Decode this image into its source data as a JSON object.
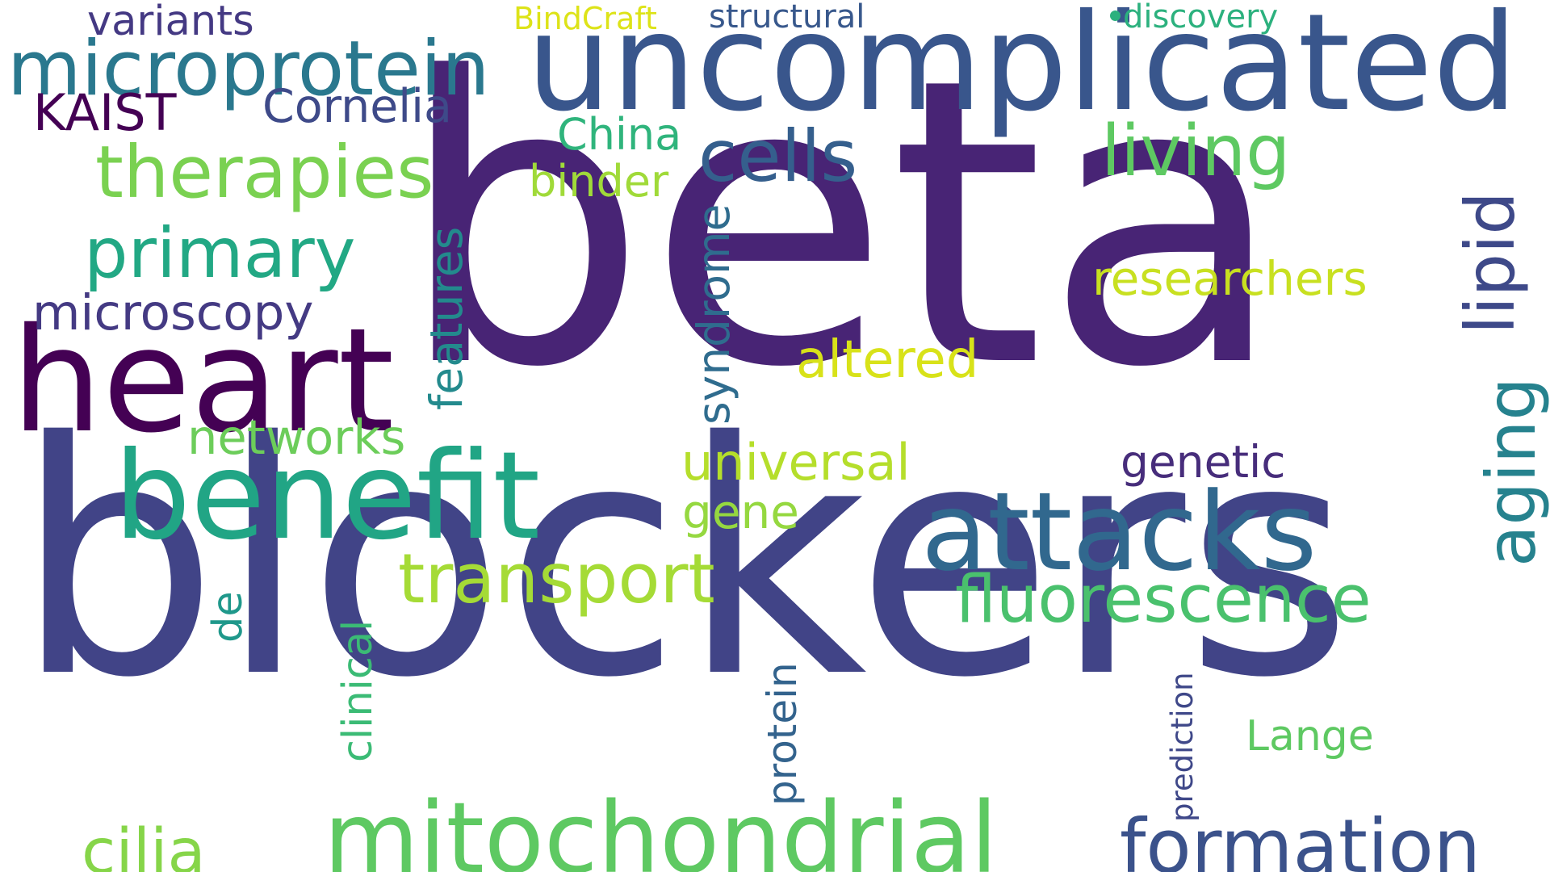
{
  "word_cloud": {
    "background": "#ffffff",
    "words": [
      {
        "text": "beta",
        "color": "#482475"
      },
      {
        "text": "blockers",
        "color": "#414487"
      },
      {
        "text": "uncomplicated",
        "color": "#39568c"
      },
      {
        "text": "heart",
        "color": "#440154"
      },
      {
        "text": "benefit",
        "color": "#21a585"
      },
      {
        "text": "attacks",
        "color": "#31688e"
      },
      {
        "text": "mitochondrial",
        "color": "#5ec962"
      },
      {
        "text": "formation",
        "color": "#3b528b"
      },
      {
        "text": "microprotein",
        "color": "#2a788e"
      },
      {
        "text": "therapies",
        "color": "#7ad151"
      },
      {
        "text": "transport",
        "color": "#a5db36"
      },
      {
        "text": "fluorescence",
        "color": "#4ac16d"
      },
      {
        "text": "primary",
        "color": "#22a884"
      },
      {
        "text": "cells",
        "color": "#355f8d"
      },
      {
        "text": "living",
        "color": "#5ec962"
      },
      {
        "text": "lipid",
        "color": "#3e4989"
      },
      {
        "text": "aging",
        "color": "#26828e"
      },
      {
        "text": "cilia",
        "color": "#86d549"
      },
      {
        "text": "microscopy",
        "color": "#443a83"
      },
      {
        "text": "researchers",
        "color": "#c8e020"
      },
      {
        "text": "altered",
        "color": "#d8e219"
      },
      {
        "text": "universal",
        "color": "#b5de2b"
      },
      {
        "text": "genetic",
        "color": "#472d7b"
      },
      {
        "text": "networks",
        "color": "#6ccd5a"
      },
      {
        "text": "gene",
        "color": "#95d840"
      },
      {
        "text": "Cornelia",
        "color": "#3e4a89"
      },
      {
        "text": "KAIST",
        "color": "#440154"
      },
      {
        "text": "variants",
        "color": "#443983"
      },
      {
        "text": "China",
        "color": "#2fb47c"
      },
      {
        "text": "binder",
        "color": "#a0da39"
      },
      {
        "text": "features",
        "color": "#238a8d"
      },
      {
        "text": "syndrome",
        "color": "#2f6c8e"
      },
      {
        "text": "clinical",
        "color": "#3bbb75"
      },
      {
        "text": "de",
        "color": "#1f988b"
      },
      {
        "text": "protein",
        "color": "#33638d"
      },
      {
        "text": "prediction",
        "color": "#3f4889"
      },
      {
        "text": "Lange",
        "color": "#5ec962"
      },
      {
        "text": "BindCraft",
        "color": "#dde318"
      },
      {
        "text": "structural",
        "color": "#38588c"
      },
      {
        "text": "discovery",
        "color": "#2cb17e"
      }
    ]
  }
}
